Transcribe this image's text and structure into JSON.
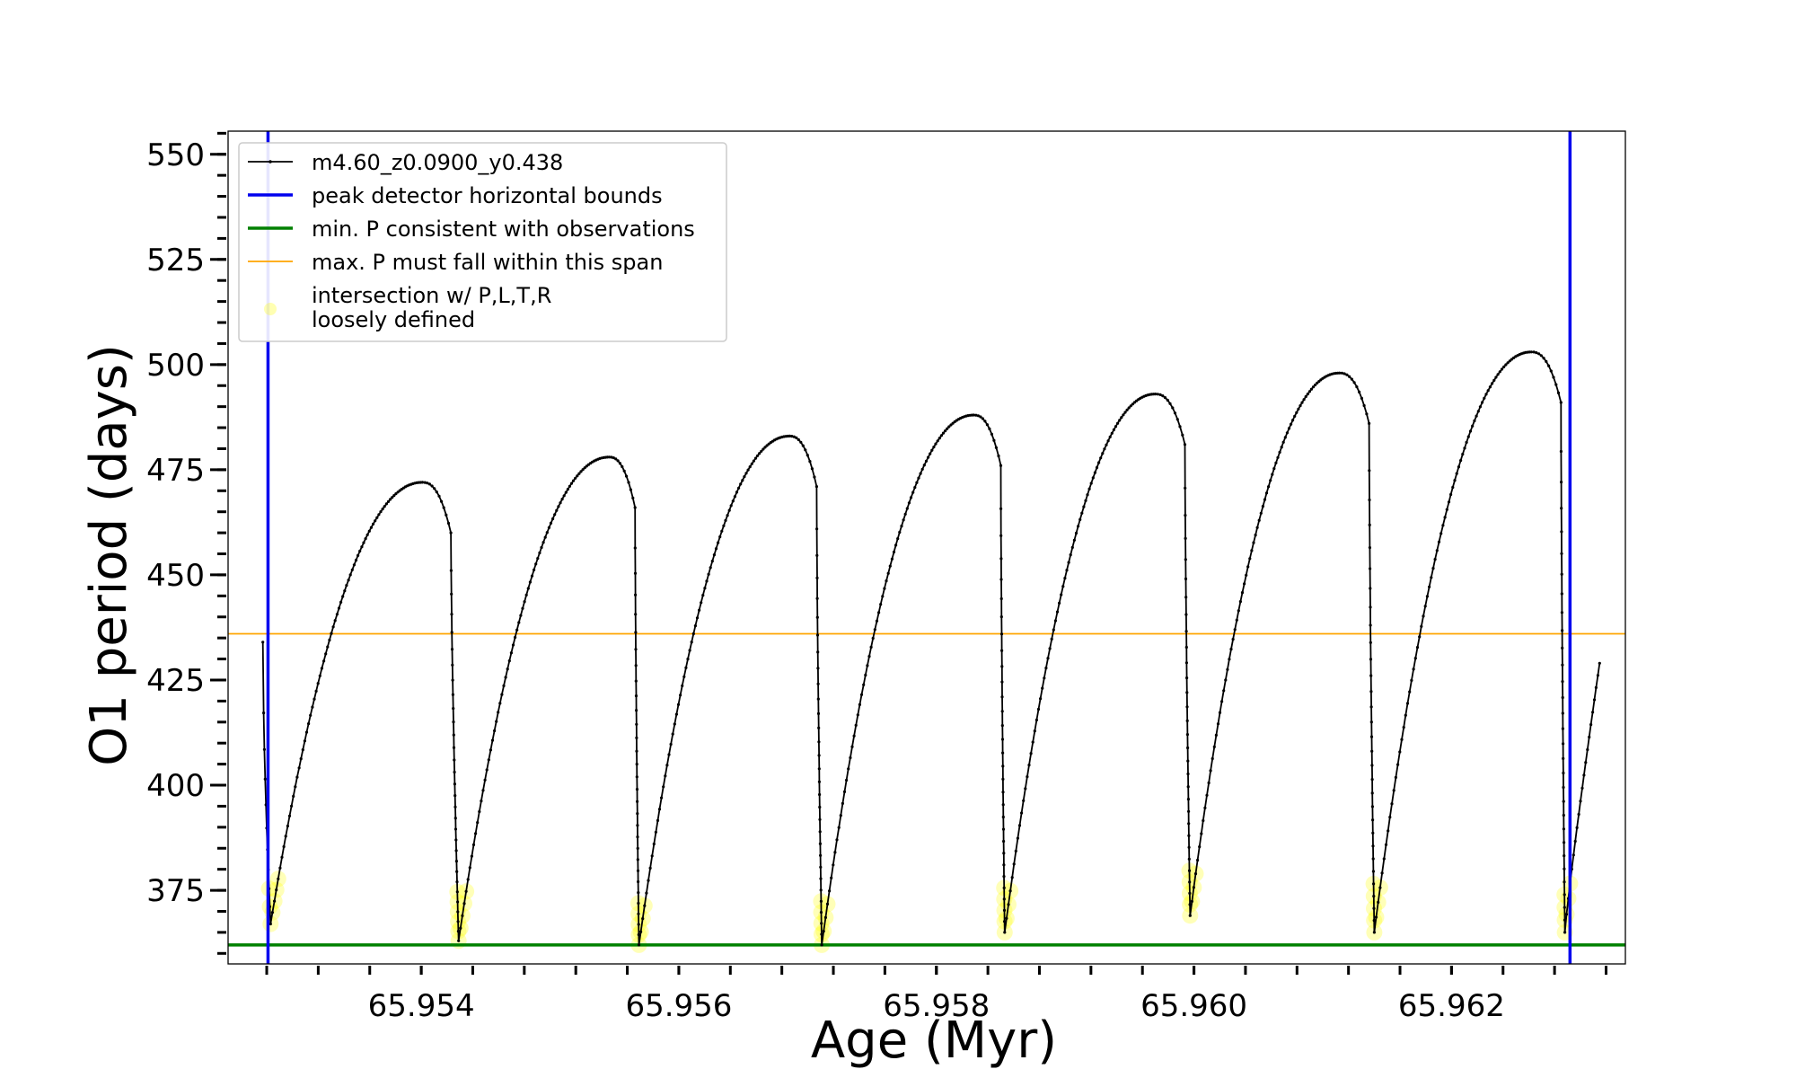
{
  "chart_data": {
    "type": "line",
    "title": "",
    "xlabel": "Age (Myr)",
    "ylabel": "O1 period (days)",
    "xlim": [
      65.9525,
      65.96335
    ],
    "ylim": [
      357.5,
      555.5
    ],
    "x_ticks": [
      65.954,
      65.956,
      65.958,
      65.96,
      65.962
    ],
    "x_tick_labels": [
      "65.954",
      "65.956",
      "65.958",
      "65.960",
      "65.962"
    ],
    "x_minor_step": 0.0004,
    "y_ticks": [
      375,
      400,
      425,
      450,
      475,
      500,
      525,
      550
    ],
    "y_tick_labels": [
      "375",
      "400",
      "425",
      "450",
      "475",
      "500",
      "525",
      "550"
    ],
    "y_minor_step": 5,
    "series": [
      {
        "name": "m4.60_z0.0900_y0.438",
        "color": "#000000",
        "start": {
          "x": 65.95277,
          "y": 434
        },
        "end": {
          "x": 65.96315,
          "y": 429
        },
        "cycles": [
          {
            "min_x": 65.95283,
            "min_y": 367,
            "peak_x": 65.95401,
            "peak_y": 472,
            "drop_x": 65.95423
          },
          {
            "min_x": 65.95429,
            "min_y": 363,
            "peak_x": 65.95546,
            "peak_y": 478,
            "drop_x": 65.95566
          },
          {
            "min_x": 65.95569,
            "min_y": 362,
            "peak_x": 65.95686,
            "peak_y": 483,
            "drop_x": 65.95707
          },
          {
            "min_x": 65.95711,
            "min_y": 362,
            "peak_x": 65.95829,
            "peak_y": 488,
            "drop_x": 65.9585
          },
          {
            "min_x": 65.95853,
            "min_y": 365,
            "peak_x": 65.9597,
            "peak_y": 493,
            "drop_x": 65.95993
          },
          {
            "min_x": 65.95997,
            "min_y": 369,
            "peak_x": 65.96113,
            "peak_y": 498,
            "drop_x": 65.96136
          },
          {
            "min_x": 65.9614,
            "min_y": 365,
            "peak_x": 65.96262,
            "peak_y": 503,
            "drop_x": 65.96285
          },
          {
            "min_x": 65.96288,
            "min_y": 365
          }
        ]
      }
    ],
    "vertical_lines": {
      "name": "peak detector horizontal bounds",
      "color": "#0000ee",
      "x": [
        65.95281,
        65.96292
      ]
    },
    "horizontal_lines": [
      {
        "name": "min. P consistent with observations",
        "color": "#008000",
        "y": 362
      },
      {
        "name": "max. P must fall within this span",
        "color": "#ffa500",
        "y": 436
      }
    ],
    "highlight": {
      "name": "intersection w/ P,L,T,R loosely defined",
      "color": "#ffff00",
      "span_above_min": 12
    },
    "legend": {
      "position": "top-left",
      "entries": [
        "m4.60_z0.0900_y0.438",
        "peak detector horizontal bounds",
        "min. P consistent with observations",
        "max. P must fall within this span"
      ],
      "highlight_lines": [
        "intersection w/ P,L,T,R",
        "loosely defined"
      ]
    }
  }
}
